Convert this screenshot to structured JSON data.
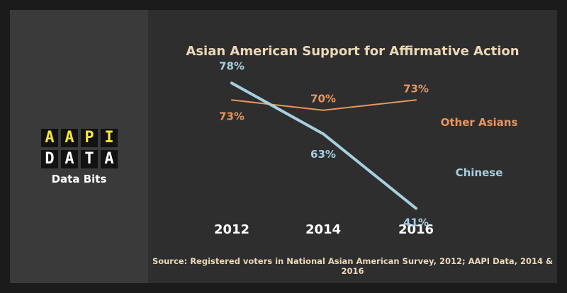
{
  "logo": {
    "row1": [
      "A",
      "A",
      "P",
      "I"
    ],
    "row2": [
      "D",
      "A",
      "T",
      "A"
    ],
    "tagline": "Data Bits"
  },
  "source": "Source: Registered voters in National Asian American Survey, 2012; AAPI Data, 2014 & 2016",
  "colors": {
    "other_asians": "#e8955e",
    "chinese": "#a8cfe0"
  },
  "chart_data": {
    "type": "line",
    "title": "Asian American Support for Affirmative Action",
    "x": [
      "2012",
      "2014",
      "2016"
    ],
    "ylim": [
      30,
      90
    ],
    "grid": false,
    "series": [
      {
        "name": "Other Asians",
        "values": [
          73,
          70,
          73
        ],
        "labels": [
          "73%",
          "70%",
          "73%"
        ]
      },
      {
        "name": "Chinese",
        "values": [
          78,
          63,
          41
        ],
        "labels": [
          "78%",
          "63%",
          "41%"
        ]
      }
    ]
  }
}
